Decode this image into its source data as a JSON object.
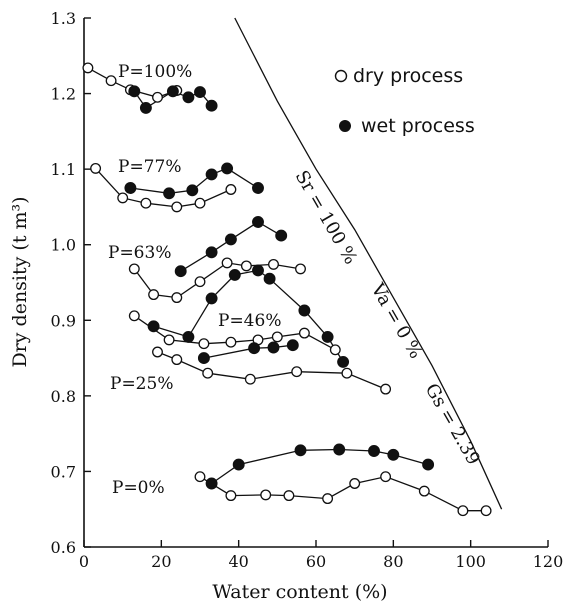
{
  "chart_data": {
    "type": "line",
    "xlabel": "Water content (%)",
    "ylabel": "Dry density (t m³)",
    "xlim": [
      0,
      120
    ],
    "ylim": [
      0.6,
      1.3
    ],
    "x_ticks": [
      "0",
      "20",
      "40",
      "60",
      "80",
      "100",
      "120"
    ],
    "y_ticks": [
      "0.6",
      "0.7",
      "0.8",
      "0.9",
      "1.0",
      "1.1",
      "1.2",
      "1.3"
    ],
    "legend": {
      "position": "top-right",
      "items": [
        {
          "label": "dry process",
          "marker": "open-circle"
        },
        {
          "label": "wet process",
          "marker": "filled-circle"
        }
      ]
    },
    "series": [
      {
        "name": "P=100%",
        "process": "dry",
        "x": [
          1,
          7,
          12,
          19,
          24
        ],
        "y": [
          1.234,
          1.217,
          1.205,
          1.195,
          1.204
        ]
      },
      {
        "name": "P=100%",
        "process": "wet",
        "x": [
          13,
          16,
          23,
          27,
          30,
          33
        ],
        "y": [
          1.203,
          1.181,
          1.203,
          1.195,
          1.202,
          1.184
        ]
      },
      {
        "name": "P=77%",
        "process": "dry",
        "x": [
          3,
          10,
          16,
          24,
          30,
          38
        ],
        "y": [
          1.101,
          1.062,
          1.055,
          1.05,
          1.055,
          1.073
        ]
      },
      {
        "name": "P=77%",
        "process": "wet",
        "x": [
          12,
          22,
          28,
          33,
          37,
          45
        ],
        "y": [
          1.075,
          1.068,
          1.072,
          1.093,
          1.101,
          1.075
        ]
      },
      {
        "name": "P=63%",
        "process": "dry",
        "x": [
          13,
          18,
          24,
          30,
          37,
          42,
          49,
          56
        ],
        "y": [
          0.968,
          0.934,
          0.93,
          0.951,
          0.976,
          0.972,
          0.974,
          0.968
        ]
      },
      {
        "name": "P=63%",
        "process": "wet",
        "x": [
          25,
          33,
          38,
          45,
          51
        ],
        "y": [
          0.965,
          0.99,
          1.007,
          1.03,
          1.012
        ]
      },
      {
        "name": "P=46%",
        "process": "dry",
        "x": [
          13,
          22,
          31,
          38,
          45,
          50,
          57,
          65
        ],
        "y": [
          0.906,
          0.874,
          0.869,
          0.871,
          0.874,
          0.878,
          0.883,
          0.861
        ]
      },
      {
        "name": "P=46%",
        "process": "wet",
        "x": [
          18,
          27,
          33,
          39,
          45,
          48,
          57,
          63,
          67
        ],
        "y": [
          0.892,
          0.878,
          0.929,
          0.96,
          0.966,
          0.955,
          0.913,
          0.878,
          0.845
        ]
      },
      {
        "name": "P=25%",
        "process": "dry",
        "x": [
          19,
          24,
          32,
          43,
          55,
          68,
          78
        ],
        "y": [
          0.858,
          0.848,
          0.83,
          0.822,
          0.832,
          0.83,
          0.809
        ]
      },
      {
        "name": "P=25%",
        "process": "wet",
        "x": [
          31,
          44,
          49,
          54
        ],
        "y": [
          0.85,
          0.863,
          0.864,
          0.867
        ]
      },
      {
        "name": "P=0%",
        "process": "dry",
        "x": [
          30,
          38,
          47,
          53,
          63,
          70,
          78,
          88,
          98,
          104
        ],
        "y": [
          0.693,
          0.668,
          0.669,
          0.668,
          0.664,
          0.684,
          0.693,
          0.674,
          0.648,
          0.648
        ]
      },
      {
        "name": "P=0%",
        "process": "wet",
        "x": [
          33,
          40,
          56,
          66,
          75,
          80,
          89
        ],
        "y": [
          0.684,
          0.709,
          0.728,
          0.729,
          0.727,
          0.722,
          0.709
        ]
      }
    ],
    "curve_labels": [
      "Sr = 100 %",
      "Va = 0 %",
      "Gs = 2.39"
    ],
    "saturation_curve": {
      "x": [
        39,
        50,
        60,
        70,
        80,
        90,
        100,
        108
      ],
      "y": [
        1.3,
        1.19,
        1.1,
        1.02,
        0.93,
        0.84,
        0.74,
        0.65
      ]
    }
  }
}
